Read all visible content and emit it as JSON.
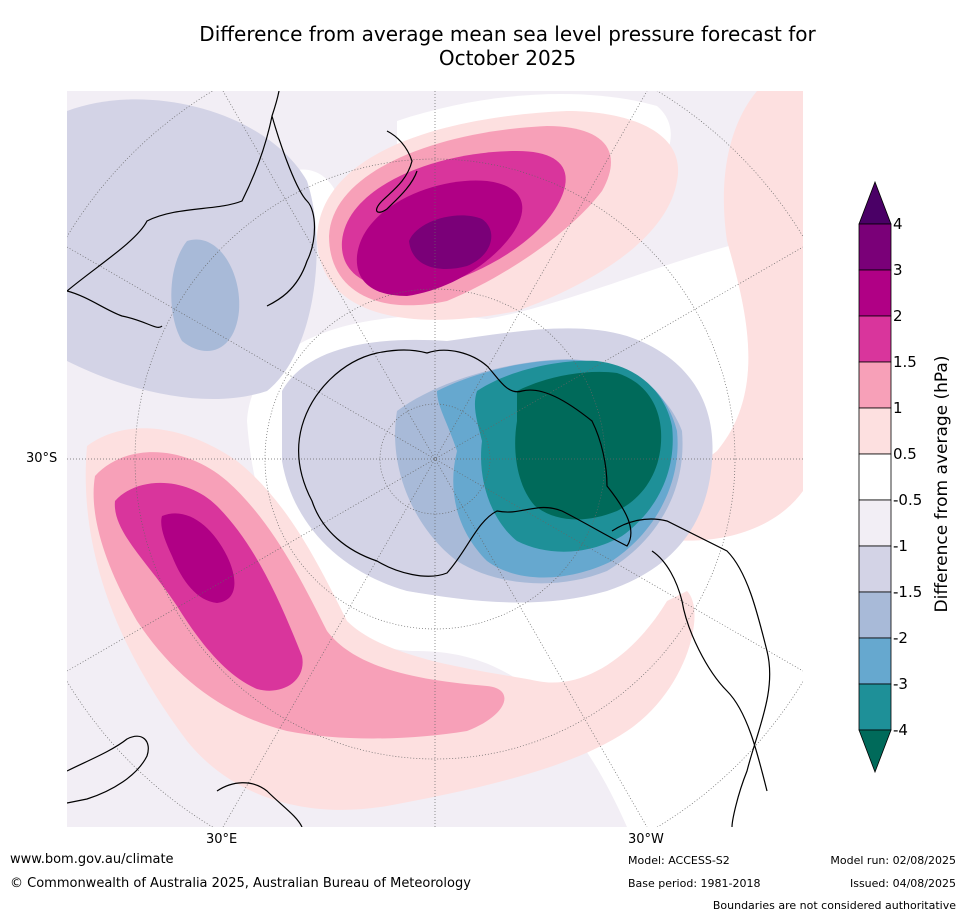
{
  "title_line1": "Difference from average mean sea level pressure forecast for",
  "title_line2": "October 2025",
  "map_labels": {
    "lat_30s": "30°S",
    "lon_30e": "30°E",
    "lon_30w": "30°W"
  },
  "colorbar": {
    "label": "Difference from average (hPa)",
    "ticks": [
      "4",
      "3",
      "2",
      "1.5",
      "1",
      "0.5",
      "-0.5",
      "-1",
      "-1.5",
      "-2",
      "-3",
      "-4"
    ],
    "colors": [
      "#4a0066",
      "#7a0078",
      "#b00085",
      "#d9359c",
      "#f7a0b8",
      "#fde0e0",
      "#ffffff",
      "#f2eef5",
      "#d3d3e6",
      "#a8bad8",
      "#66a8cf",
      "#1e9098",
      "#006a5a"
    ]
  },
  "footer": {
    "website": "www.bom.gov.au/climate",
    "copyright": "© Commonwealth of Australia 2025, Australian Bureau of Meteorology",
    "model": "Model: ACCESS-S2",
    "base_period": "Base period: 1981-2018",
    "model_run": "Model run: 02/08/2025",
    "issued": "Issued: 04/08/2025",
    "disclaimer": "Boundaries are not considered authoritative"
  }
}
